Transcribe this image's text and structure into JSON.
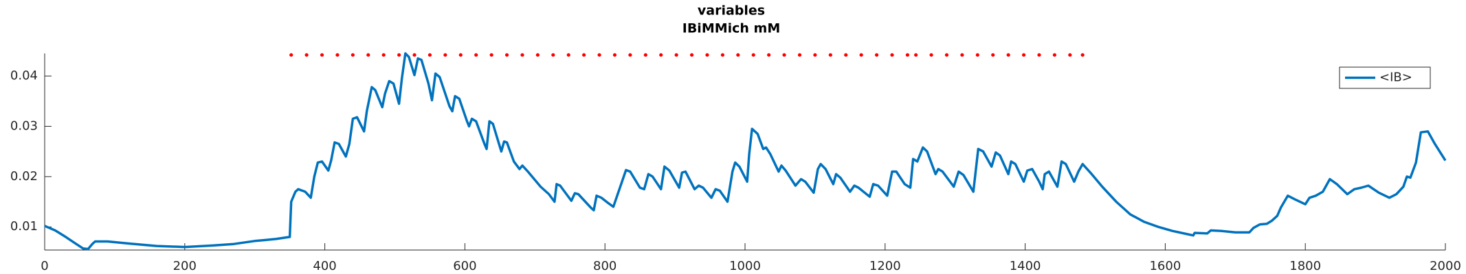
{
  "chart_data": {
    "type": "line",
    "title": "variables",
    "subtitle": "IBiMMich mM",
    "xlim": [
      0,
      2000
    ],
    "xticks": [
      0,
      200,
      400,
      600,
      800,
      1000,
      1200,
      1400,
      1600,
      1800,
      2000
    ],
    "ylim": [
      0.0054,
      0.0445
    ],
    "yticks": [
      0.01,
      0.02,
      0.03,
      0.04
    ],
    "grid": false,
    "legend": "upper right",
    "series": [
      {
        "name": "<IB>",
        "color": "#0072bd",
        "x": [
          0,
          15,
          30,
          45,
          55,
          62,
          68,
          72,
          90,
          120,
          160,
          200,
          240,
          270,
          300,
          330,
          350,
          352,
          358,
          362,
          372,
          380,
          385,
          390,
          396,
          405,
          409,
          414,
          420,
          430,
          435,
          440,
          446,
          456,
          460,
          467,
          472,
          482,
          486,
          492,
          498,
          506,
          510,
          515,
          520,
          528,
          533,
          538,
          548,
          553,
          558,
          564,
          578,
          582,
          586,
          592,
          603,
          606,
          610,
          616,
          628,
          631,
          635,
          640,
          652,
          656,
          660,
          670,
          678,
          682,
          690,
          708,
          720,
          728,
          731,
          736,
          745,
          752,
          757,
          762,
          772,
          780,
          784,
          788,
          795,
          805,
          812,
          830,
          836,
          850,
          856,
          862,
          868,
          880,
          885,
          892,
          906,
          910,
          915,
          928,
          934,
          940,
          952,
          958,
          964,
          975,
          982,
          986,
          992,
          1003,
          1006,
          1010,
          1018,
          1026,
          1030,
          1036,
          1048,
          1052,
          1058,
          1072,
          1080,
          1086,
          1098,
          1104,
          1108,
          1115,
          1126,
          1130,
          1136,
          1150,
          1156,
          1162,
          1178,
          1183,
          1190,
          1203,
          1210,
          1216,
          1228,
          1236,
          1240,
          1246,
          1254,
          1260,
          1272,
          1276,
          1282,
          1298,
          1305,
          1312,
          1326,
          1333,
          1340,
          1352,
          1358,
          1364,
          1376,
          1380,
          1386,
          1398,
          1403,
          1410,
          1420,
          1425,
          1428,
          1434,
          1446,
          1452,
          1458,
          1470,
          1476,
          1482,
          1495,
          1510,
          1530,
          1550,
          1570,
          1590,
          1610,
          1630,
          1640,
          1642,
          1660,
          1665,
          1680,
          1700,
          1720,
          1726,
          1735,
          1745,
          1752,
          1760,
          1765,
          1775,
          1785,
          1800,
          1806,
          1815,
          1825,
          1835,
          1845,
          1860,
          1870,
          1880,
          1890,
          1905,
          1920,
          1930,
          1940,
          1945,
          1950,
          1958,
          1965,
          1975,
          1985,
          2000
        ],
        "values": [
          0.0102,
          0.0093,
          0.008,
          0.0066,
          0.0057,
          0.0056,
          0.0066,
          0.0071,
          0.0071,
          0.0067,
          0.0062,
          0.006,
          0.0063,
          0.0066,
          0.0072,
          0.0076,
          0.008,
          0.015,
          0.017,
          0.0175,
          0.017,
          0.0158,
          0.02,
          0.0228,
          0.023,
          0.0212,
          0.0232,
          0.0268,
          0.0265,
          0.024,
          0.0265,
          0.0315,
          0.0318,
          0.029,
          0.033,
          0.0378,
          0.0372,
          0.0338,
          0.0365,
          0.039,
          0.0385,
          0.0345,
          0.0395,
          0.0445,
          0.0438,
          0.0402,
          0.0435,
          0.0432,
          0.0385,
          0.0352,
          0.0405,
          0.0398,
          0.034,
          0.033,
          0.036,
          0.0355,
          0.031,
          0.03,
          0.0315,
          0.031,
          0.0265,
          0.0255,
          0.031,
          0.0305,
          0.025,
          0.027,
          0.0268,
          0.023,
          0.0215,
          0.0222,
          0.021,
          0.018,
          0.0165,
          0.015,
          0.0185,
          0.0182,
          0.0165,
          0.0152,
          0.0167,
          0.0165,
          0.015,
          0.0138,
          0.0133,
          0.0162,
          0.0158,
          0.0147,
          0.014,
          0.0213,
          0.021,
          0.0178,
          0.0175,
          0.0205,
          0.02,
          0.0175,
          0.022,
          0.0212,
          0.0178,
          0.0208,
          0.021,
          0.0175,
          0.0182,
          0.0178,
          0.0158,
          0.0175,
          0.0172,
          0.015,
          0.021,
          0.0228,
          0.022,
          0.019,
          0.0245,
          0.0295,
          0.0285,
          0.0255,
          0.0258,
          0.0245,
          0.021,
          0.0222,
          0.0212,
          0.0182,
          0.0195,
          0.019,
          0.0168,
          0.0215,
          0.0225,
          0.0215,
          0.0185,
          0.0205,
          0.0198,
          0.017,
          0.0182,
          0.0178,
          0.016,
          0.0185,
          0.0182,
          0.0162,
          0.021,
          0.021,
          0.0185,
          0.0178,
          0.0235,
          0.023,
          0.0258,
          0.025,
          0.0205,
          0.0215,
          0.021,
          0.018,
          0.021,
          0.0203,
          0.017,
          0.0255,
          0.025,
          0.022,
          0.0248,
          0.0242,
          0.0205,
          0.023,
          0.0225,
          0.019,
          0.0212,
          0.0215,
          0.019,
          0.0175,
          0.0205,
          0.021,
          0.018,
          0.023,
          0.0225,
          0.019,
          0.021,
          0.0225,
          0.0205,
          0.018,
          0.015,
          0.0125,
          0.011,
          0.01,
          0.0092,
          0.0086,
          0.0083,
          0.0088,
          0.0087,
          0.0093,
          0.0092,
          0.0089,
          0.0089,
          0.0098,
          0.0105,
          0.0106,
          0.0112,
          0.0122,
          0.0138,
          0.0162,
          0.0155,
          0.0145,
          0.0158,
          0.0162,
          0.017,
          0.0195,
          0.0185,
          0.0165,
          0.0175,
          0.0178,
          0.0182,
          0.0168,
          0.0158,
          0.0165,
          0.018,
          0.02,
          0.0198,
          0.0228,
          0.0288,
          0.029,
          0.0265,
          0.0232
        ]
      }
    ],
    "markers": {
      "color": "#ff0000",
      "x": [
        352,
        374,
        396,
        418,
        440,
        462,
        484,
        506,
        528,
        550,
        572,
        594,
        616,
        638,
        660,
        682,
        704,
        726,
        748,
        770,
        792,
        814,
        836,
        858,
        880,
        902,
        924,
        946,
        968,
        990,
        1012,
        1034,
        1056,
        1078,
        1100,
        1122,
        1144,
        1166,
        1188,
        1210,
        1232,
        1244,
        1266,
        1288,
        1310,
        1332,
        1354,
        1376,
        1398,
        1420,
        1442,
        1464,
        1482
      ],
      "values": [
        0.0442,
        0.0442,
        0.0442,
        0.0442,
        0.0442,
        0.0442,
        0.0442,
        0.0442,
        0.0442,
        0.0442,
        0.0442,
        0.0442,
        0.0442,
        0.0442,
        0.0442,
        0.0442,
        0.0442,
        0.0442,
        0.0442,
        0.0442,
        0.0442,
        0.0442,
        0.0442,
        0.0442,
        0.0442,
        0.0442,
        0.0442,
        0.0442,
        0.0442,
        0.0442,
        0.0442,
        0.0442,
        0.0442,
        0.0442,
        0.0442,
        0.0442,
        0.0442,
        0.0442,
        0.0442,
        0.0442,
        0.0442,
        0.0442,
        0.0442,
        0.0442,
        0.0442,
        0.0442,
        0.0442,
        0.0442,
        0.0442,
        0.0442,
        0.0442,
        0.0442,
        0.0442
      ]
    }
  }
}
